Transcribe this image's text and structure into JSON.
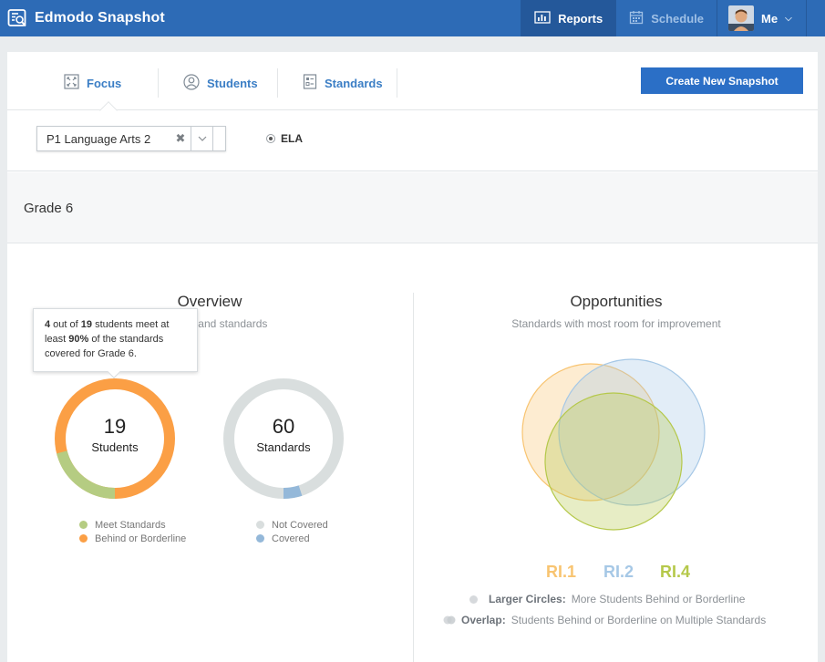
{
  "app": {
    "title": "Edmodo Snapshot"
  },
  "topnav": {
    "reports": "Reports",
    "schedule": "Schedule",
    "me": "Me"
  },
  "tabs": [
    {
      "label": "Focus",
      "active": true
    },
    {
      "label": "Students"
    },
    {
      "label": "Standards"
    }
  ],
  "create_button": "Create New Snapshot",
  "filter": {
    "class_value": "P1 Language Arts 2",
    "subject": "ELA"
  },
  "grade": "Grade 6",
  "overview": {
    "title": "Overview",
    "subtitle": "Students and standards",
    "tooltip": {
      "meet": "4",
      "text_1": " out of ",
      "total": "19",
      "text_2": " students meet at least ",
      "percent": "90%",
      "text_3": " of the standards covered for Grade 6."
    },
    "students": {
      "count": "19",
      "label": "Students",
      "meet_fraction": 0.21,
      "legend_meet": "Meet Standards",
      "legend_behind": "Behind or Borderline"
    },
    "standards": {
      "count": "60",
      "label": "Standards",
      "covered_fraction": 0.05,
      "legend_not_covered": "Not Covered",
      "legend_covered": "Covered"
    }
  },
  "opportunities": {
    "title": "Opportunities",
    "subtitle": "Standards with most room for improvement",
    "standards": [
      {
        "label": "RI.1",
        "color": "#f8c471"
      },
      {
        "label": "RI.2",
        "color": "#a6c8e6"
      },
      {
        "label": "RI.4",
        "color": "#b5c84a"
      }
    ],
    "note_circles_label": "Larger Circles:",
    "note_circles_text": " More Students Behind or Borderline",
    "note_overlap_label": "Overlap:",
    "note_overlap_text": " Students Behind or Borderline on Multiple Standards"
  },
  "colors": {
    "orange": "#fb9f45",
    "green": "#b5cc82",
    "gray": "#d9dede",
    "blue": "#94b8d9",
    "accent": "#2b6fc6"
  },
  "icons": [
    "snapshot-logo-icon",
    "reports-icon",
    "schedule-icon",
    "focus-icon",
    "students-icon",
    "standards-icon",
    "clear-icon",
    "chevron-down-icon"
  ]
}
